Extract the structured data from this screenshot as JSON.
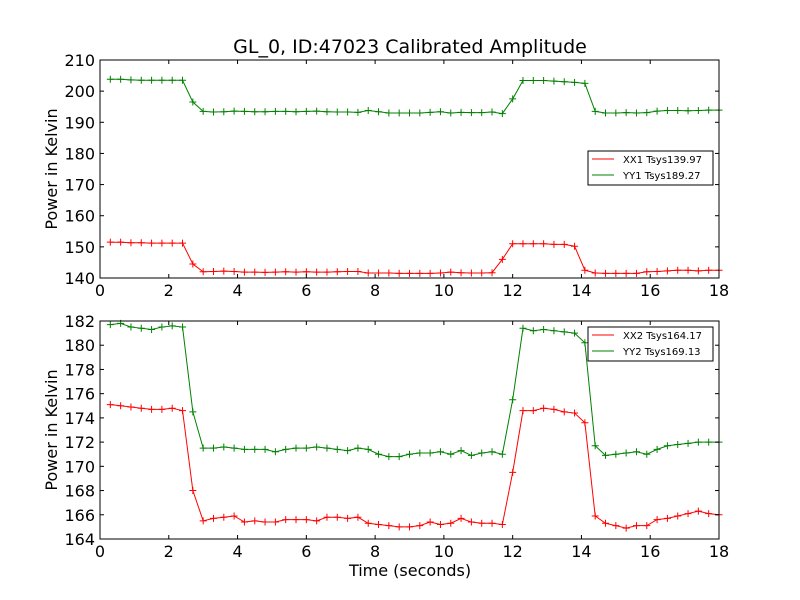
{
  "chart_data": [
    {
      "type": "line",
      "title": "GL_0, ID:47023 Calibrated Amplitude",
      "xlabel": "",
      "ylabel": "Power in Kelvin",
      "xlim": [
        0,
        18
      ],
      "ylim": [
        140,
        210
      ],
      "xticks": [
        0,
        2,
        4,
        6,
        8,
        10,
        12,
        14,
        16,
        18
      ],
      "yticks": [
        140,
        150,
        160,
        170,
        180,
        190,
        200,
        210
      ],
      "legend": "center-right",
      "x": [
        0.3,
        0.6,
        0.9,
        1.2,
        1.5,
        1.8,
        2.1,
        2.4,
        2.7,
        3.0,
        3.3,
        3.6,
        3.9,
        4.2,
        4.5,
        4.8,
        5.1,
        5.4,
        5.7,
        6.0,
        6.3,
        6.6,
        6.9,
        7.2,
        7.5,
        7.8,
        8.1,
        8.4,
        8.7,
        9.0,
        9.3,
        9.6,
        9.9,
        10.2,
        10.5,
        10.8,
        11.1,
        11.4,
        11.7,
        12.0,
        12.3,
        12.6,
        12.9,
        13.2,
        13.5,
        13.8,
        14.1,
        14.4,
        14.7,
        15.0,
        15.3,
        15.6,
        15.9,
        16.2,
        16.5,
        16.8,
        17.1,
        17.4,
        17.7,
        18.0
      ],
      "series": [
        {
          "name": "XX1 Tsys139.97",
          "color": "#ff0000",
          "values": [
            151.5,
            151.5,
            151.3,
            151.3,
            151.2,
            151.2,
            151.2,
            151.2,
            144.5,
            142.0,
            142.1,
            142.2,
            142.1,
            141.9,
            141.9,
            141.8,
            141.9,
            142.0,
            141.9,
            142.0,
            141.9,
            141.9,
            142.0,
            142.1,
            142.1,
            141.6,
            141.6,
            141.6,
            141.5,
            141.5,
            141.5,
            141.5,
            141.6,
            141.9,
            141.7,
            141.6,
            141.6,
            141.7,
            146.0,
            151.0,
            151.0,
            151.0,
            151.0,
            150.8,
            150.8,
            150.2,
            142.5,
            141.6,
            141.5,
            141.5,
            141.5,
            141.5,
            142.0,
            142.1,
            142.3,
            142.5,
            142.5,
            142.3,
            142.5,
            142.5
          ]
        },
        {
          "name": "YY1 Tsys189.27",
          "color": "#008000",
          "values": [
            203.8,
            203.8,
            203.6,
            203.5,
            203.5,
            203.5,
            203.5,
            203.5,
            196.5,
            193.5,
            193.3,
            193.4,
            193.6,
            193.5,
            193.4,
            193.4,
            193.5,
            193.5,
            193.4,
            193.5,
            193.6,
            193.4,
            193.3,
            193.3,
            193.2,
            193.8,
            193.4,
            193.0,
            193.0,
            193.0,
            193.0,
            193.2,
            193.4,
            193.0,
            193.2,
            193.1,
            193.1,
            193.3,
            192.8,
            197.5,
            203.4,
            203.4,
            203.4,
            203.2,
            203.0,
            202.8,
            202.5,
            193.5,
            193.0,
            193.0,
            193.1,
            193.0,
            193.1,
            193.6,
            193.8,
            193.8,
            193.7,
            193.8,
            193.9,
            193.9
          ]
        }
      ]
    },
    {
      "type": "line",
      "title": "",
      "xlabel": "Time (seconds)",
      "ylabel": "Power in Kelvin",
      "xlim": [
        0,
        18
      ],
      "ylim": [
        164,
        182
      ],
      "xticks": [
        0,
        2,
        4,
        6,
        8,
        10,
        12,
        14,
        16,
        18
      ],
      "yticks": [
        164,
        166,
        168,
        170,
        172,
        174,
        176,
        178,
        180,
        182
      ],
      "legend": "top-right",
      "x": [
        0.3,
        0.6,
        0.9,
        1.2,
        1.5,
        1.8,
        2.1,
        2.4,
        2.7,
        3.0,
        3.3,
        3.6,
        3.9,
        4.2,
        4.5,
        4.8,
        5.1,
        5.4,
        5.7,
        6.0,
        6.3,
        6.6,
        6.9,
        7.2,
        7.5,
        7.8,
        8.1,
        8.4,
        8.7,
        9.0,
        9.3,
        9.6,
        9.9,
        10.2,
        10.5,
        10.8,
        11.1,
        11.4,
        11.7,
        12.0,
        12.3,
        12.6,
        12.9,
        13.2,
        13.5,
        13.8,
        14.1,
        14.4,
        14.7,
        15.0,
        15.3,
        15.6,
        15.9,
        16.2,
        16.5,
        16.8,
        17.1,
        17.4,
        17.7,
        18.0
      ],
      "series": [
        {
          "name": "XX2 Tsys164.17",
          "color": "#ff0000",
          "values": [
            175.1,
            175.0,
            174.9,
            174.8,
            174.7,
            174.7,
            174.8,
            174.6,
            168.0,
            165.5,
            165.7,
            165.8,
            165.9,
            165.4,
            165.5,
            165.4,
            165.4,
            165.6,
            165.6,
            165.6,
            165.5,
            165.8,
            165.8,
            165.7,
            165.8,
            165.3,
            165.2,
            165.1,
            165.0,
            165.0,
            165.1,
            165.4,
            165.2,
            165.3,
            165.7,
            165.4,
            165.3,
            165.3,
            165.2,
            169.5,
            174.6,
            174.6,
            174.8,
            174.7,
            174.5,
            174.4,
            173.6,
            165.9,
            165.3,
            165.1,
            164.9,
            165.1,
            165.1,
            165.6,
            165.7,
            165.9,
            166.1,
            166.3,
            166.1,
            166.0
          ]
        },
        {
          "name": "YY2 Tsys169.13",
          "color": "#008000",
          "values": [
            181.7,
            181.8,
            181.5,
            181.4,
            181.3,
            181.5,
            181.6,
            181.5,
            174.5,
            171.5,
            171.5,
            171.6,
            171.5,
            171.4,
            171.4,
            171.4,
            171.2,
            171.4,
            171.5,
            171.5,
            171.6,
            171.5,
            171.4,
            171.3,
            171.5,
            171.4,
            171.0,
            170.8,
            170.8,
            171.0,
            171.1,
            171.1,
            171.2,
            171.0,
            171.3,
            170.9,
            171.1,
            171.2,
            171.0,
            175.5,
            181.4,
            181.2,
            181.3,
            181.2,
            181.1,
            181.0,
            180.2,
            171.7,
            170.9,
            171.0,
            171.1,
            171.2,
            171.0,
            171.4,
            171.7,
            171.8,
            171.9,
            172.0,
            172.0,
            172.0
          ]
        }
      ]
    }
  ]
}
